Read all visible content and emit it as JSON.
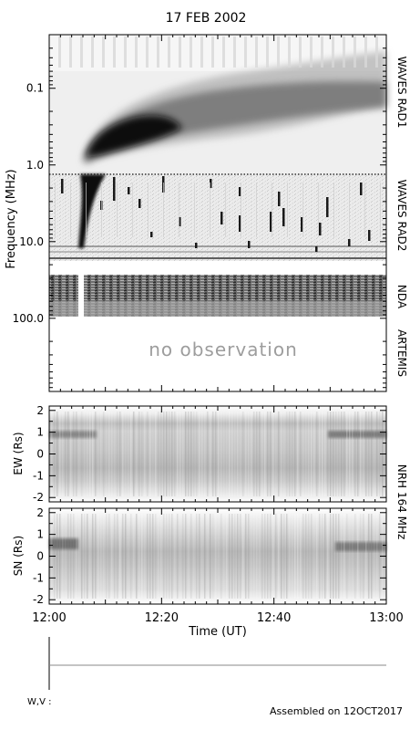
{
  "title": "17 FEB 2002",
  "footer": {
    "wv_label": "W,V :",
    "assembled": "Assembled on 12OCT2017"
  },
  "chart_data": [
    {
      "type": "heatmap",
      "name": "spectrogram",
      "ylabel": "Frequency (MHz)",
      "y_scale": "log",
      "y_reversed": true,
      "ylim": [
        0.02,
        900
      ],
      "y_ticks": [
        {
          "value": 0.1,
          "label": "0.1"
        },
        {
          "value": 1,
          "label": "1.0"
        },
        {
          "value": 10,
          "label": "10.0"
        },
        {
          "value": 100,
          "label": "100.0"
        }
      ],
      "instruments": [
        {
          "label": "WAVES RAD1",
          "freq_range": [
            0.02,
            1.07
          ]
        },
        {
          "label": "WAVES RAD2",
          "freq_range": [
            1.07,
            13.8
          ]
        },
        {
          "label": "NDA",
          "freq_range": [
            20,
            70
          ]
        },
        {
          "label": "ARTEMIS",
          "freq_range": [
            70,
            900
          ]
        }
      ],
      "annotation": "no observation",
      "grid": false
    },
    {
      "type": "heatmap",
      "name": "NRH 164 MHz EW",
      "ylabel": "EW (Rs)",
      "ylim": [
        -2.2,
        2.2
      ],
      "y_ticks": [
        2,
        1,
        0,
        -1,
        -2
      ]
    },
    {
      "type": "heatmap",
      "name": "NRH 164 MHz SN",
      "ylabel": "SN (Rs)",
      "ylim": [
        -2.2,
        2.2
      ],
      "y_ticks": [
        2,
        1,
        0,
        -1,
        -2
      ]
    }
  ],
  "nrh_label_1": "NRH  164  MHz",
  "time_axis": {
    "xlabel": "Time (UT)",
    "ticks": [
      "12:00",
      "12:20",
      "12:40",
      "13:00"
    ]
  }
}
